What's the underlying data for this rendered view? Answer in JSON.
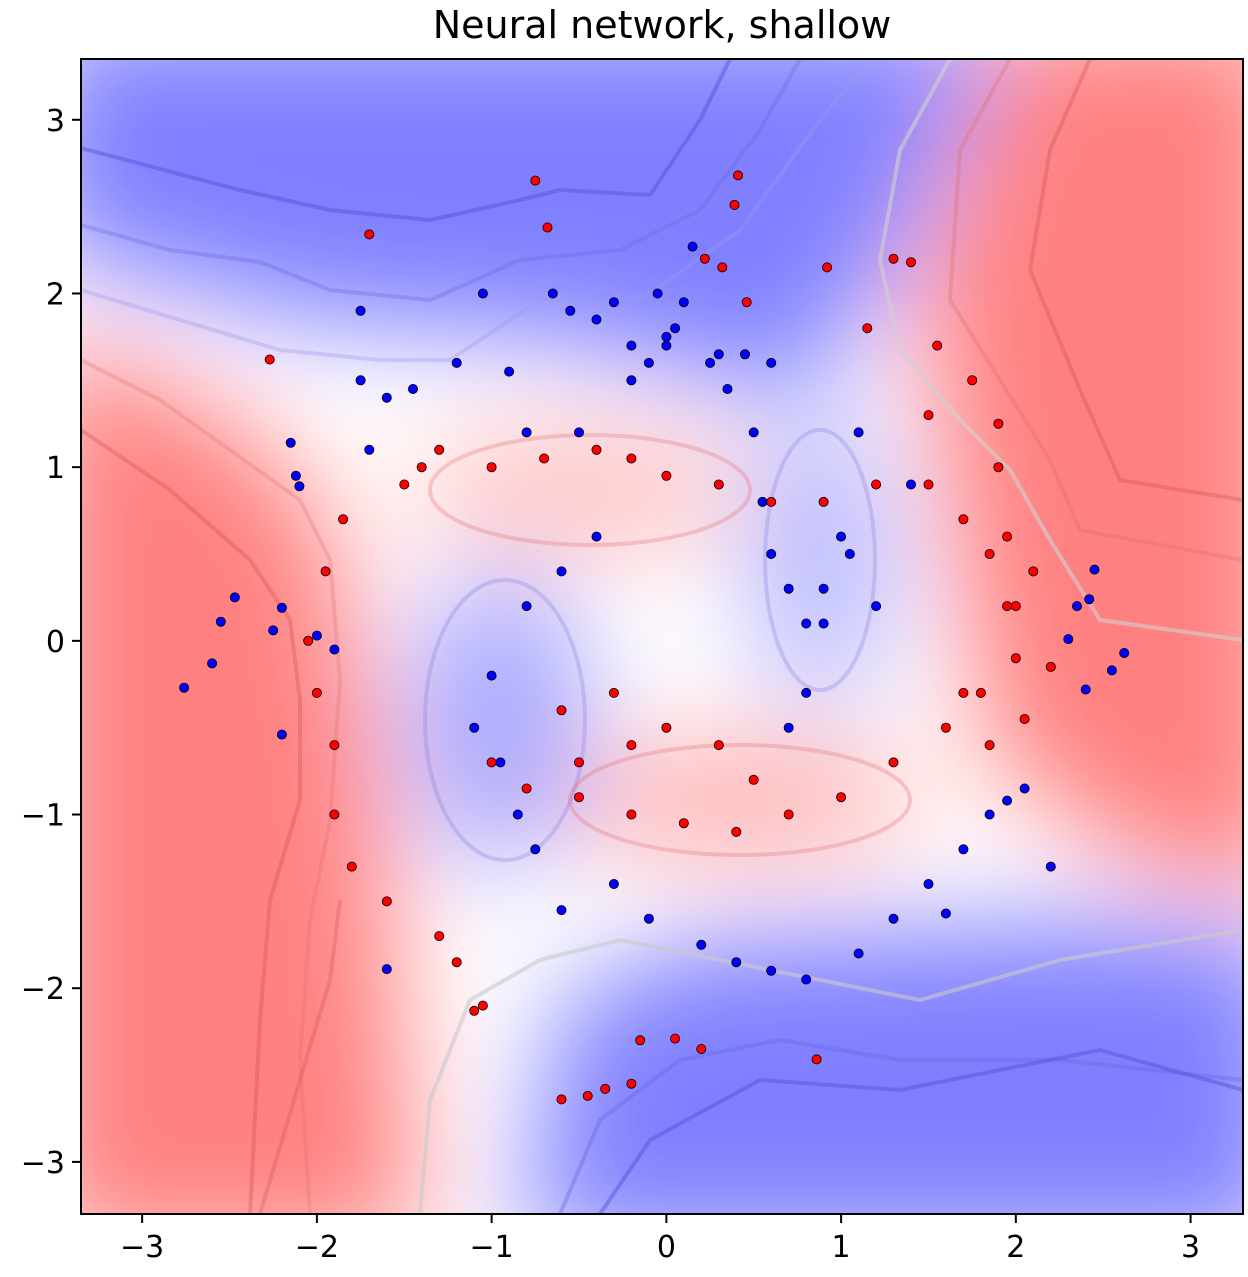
{
  "chart_data": {
    "type": "scatter",
    "title": "Neural network, shallow",
    "xlabel": "",
    "ylabel": "",
    "xlim": [
      -3.35,
      3.3
    ],
    "ylim": [
      -3.3,
      3.35
    ],
    "x_ticks": [
      -3,
      -2,
      -1,
      0,
      1,
      2,
      3
    ],
    "y_ticks": [
      -3,
      -2,
      -1,
      0,
      1,
      2,
      3
    ],
    "x_tick_labels": [
      "−3",
      "−2",
      "−1",
      "0",
      "1",
      "2",
      "3"
    ],
    "y_tick_labels": [
      "−3",
      "−2",
      "−1",
      "0",
      "1",
      "2",
      "3"
    ],
    "grid": false,
    "background": "decision-function contour fill, blue for one class and red for the other",
    "colors": {
      "class_0": "#0000ff",
      "class_1": "#ff0000",
      "region_blue": "#8080ff",
      "region_red": "#ff8080"
    },
    "series": [
      {
        "class": 0,
        "color": "#0000ff",
        "x": [
          -2.76,
          -2.6,
          -2.55,
          -2.47,
          -2.2,
          -2.2,
          -2.25,
          -2.15,
          -2.1,
          -2.12,
          -2.0,
          -1.9,
          -1.75,
          -1.6,
          -1.6,
          -1.45,
          -1.2,
          -1.05,
          -0.9,
          -0.8,
          -0.65,
          -0.55,
          -0.5,
          -0.4,
          -0.3,
          -0.2,
          -0.1,
          -0.05,
          0.0,
          0.05,
          0.1,
          0.15,
          0.25,
          0.35,
          0.45,
          0.5,
          0.55,
          0.6,
          0.7,
          0.8,
          0.9,
          1.05,
          1.2,
          -1.7,
          -1.75,
          2.3,
          2.35,
          2.42,
          2.45,
          2.55,
          2.62,
          2.4,
          1.85,
          2.2,
          1.95,
          2.05,
          1.6,
          -1.0,
          -1.1,
          -0.95,
          -0.85,
          -0.75,
          -0.6,
          0.7,
          0.8,
          0.9,
          1.0,
          -0.3,
          -0.1,
          0.2,
          0.4,
          0.6,
          0.8,
          1.1,
          1.3,
          1.5,
          1.7,
          1.4,
          1.1,
          0.6,
          0.3,
          0.0,
          -0.2,
          -0.4,
          -0.6,
          -0.8
        ],
        "y": [
          -0.27,
          -0.13,
          0.11,
          0.25,
          0.19,
          -0.54,
          0.06,
          1.14,
          0.89,
          0.95,
          0.03,
          -0.05,
          1.5,
          1.4,
          -1.89,
          1.45,
          1.6,
          2.0,
          1.55,
          1.2,
          2.0,
          1.9,
          1.2,
          1.85,
          1.95,
          1.7,
          1.6,
          2.0,
          1.75,
          1.8,
          1.95,
          2.27,
          1.6,
          1.45,
          1.65,
          1.2,
          0.8,
          0.5,
          0.3,
          0.1,
          0.3,
          0.5,
          0.2,
          1.1,
          1.9,
          0.01,
          0.2,
          0.24,
          0.41,
          -0.17,
          -0.07,
          -0.28,
          -1.0,
          -1.3,
          -0.92,
          -0.85,
          -1.57,
          -0.2,
          -0.5,
          -0.7,
          -1.0,
          -1.2,
          -1.55,
          -0.5,
          -0.3,
          0.1,
          0.6,
          -1.4,
          -1.6,
          -1.75,
          -1.85,
          -1.9,
          -1.95,
          -1.8,
          -1.6,
          -1.4,
          -1.2,
          0.9,
          1.2,
          1.6,
          1.65,
          1.7,
          1.5,
          0.6,
          0.4,
          0.2
        ]
      },
      {
        "class": 1,
        "color": "#ff0000",
        "x": [
          -0.75,
          -0.68,
          -1.7,
          -2.27,
          0.41,
          0.39,
          0.32,
          0.22,
          0.46,
          0.92,
          1.15,
          1.3,
          1.4,
          1.55,
          1.75,
          1.5,
          1.9,
          1.9,
          1.95,
          2.1,
          2.0,
          2.2,
          2.05,
          1.85,
          1.7,
          -0.15,
          0.05,
          0.2,
          -0.6,
          -0.45,
          -0.35,
          -0.2,
          0.86,
          -1.1,
          -1.05,
          -1.2,
          -1.3,
          -1.6,
          -1.8,
          -1.9,
          -1.9,
          -2.0,
          -2.05,
          -1.95,
          -1.85,
          -1.5,
          -1.4,
          -1.3,
          -1.0,
          -0.7,
          -0.4,
          -0.2,
          0.0,
          0.3,
          0.6,
          0.9,
          1.2,
          1.5,
          1.7,
          1.85,
          1.95,
          2.0,
          1.8,
          1.6,
          1.3,
          1.0,
          0.7,
          0.4,
          0.1,
          -0.2,
          -0.5,
          -0.8,
          -1.0,
          -0.6,
          -0.3,
          0.0,
          0.3,
          0.5,
          -0.5,
          -0.2
        ],
        "y": [
          2.65,
          2.38,
          2.34,
          1.62,
          2.68,
          2.51,
          2.15,
          2.2,
          1.95,
          2.15,
          1.8,
          2.2,
          2.18,
          1.7,
          1.5,
          1.3,
          1.25,
          1.0,
          0.6,
          0.4,
          0.2,
          -0.15,
          -0.45,
          -0.6,
          -0.3,
          -2.3,
          -2.29,
          -2.35,
          -2.64,
          -2.62,
          -2.58,
          -2.55,
          -2.41,
          -2.13,
          -2.1,
          -1.85,
          -1.7,
          -1.5,
          -1.3,
          -1.0,
          -0.6,
          -0.3,
          0.0,
          0.4,
          0.7,
          0.9,
          1.0,
          1.1,
          1.0,
          1.05,
          1.1,
          1.05,
          0.95,
          0.9,
          0.8,
          0.8,
          0.9,
          0.9,
          0.7,
          0.5,
          0.2,
          -0.1,
          -0.3,
          -0.5,
          -0.7,
          -0.9,
          -1.0,
          -1.1,
          -1.05,
          -1.0,
          -0.9,
          -0.85,
          -0.7,
          -0.4,
          -0.3,
          -0.5,
          -0.6,
          -0.8,
          -0.7,
          -0.6
        ]
      }
    ]
  }
}
